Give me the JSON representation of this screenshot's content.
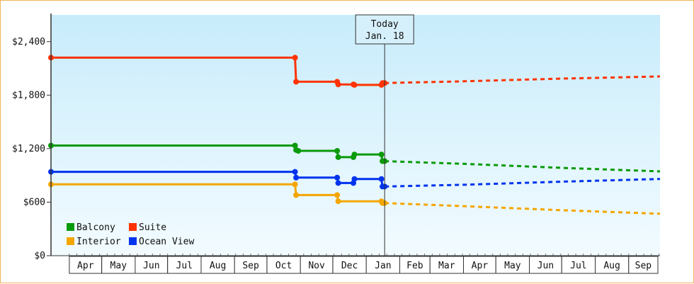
{
  "chart_data": {
    "type": "line",
    "title": "",
    "xlabel": "",
    "ylabel": "",
    "ylim": [
      0,
      2700
    ],
    "yticks": [
      0,
      600,
      1200,
      1800,
      2400
    ],
    "ytick_labels": [
      "$0",
      "$600",
      "$1,200",
      "$1,800",
      "$2,400"
    ],
    "x_range": [
      "2022-03-15",
      "2023-09-30"
    ],
    "x_month_labels": [
      "Apr",
      "May",
      "Jun",
      "Jul",
      "Aug",
      "Sep",
      "Oct",
      "Nov",
      "Dec",
      "Jan",
      "Feb",
      "Mar",
      "Apr",
      "May",
      "Jun",
      "Jul",
      "Aug",
      "Sep"
    ],
    "x_month_starts": [
      "2022-04-01",
      "2022-05-01",
      "2022-06-01",
      "2022-07-01",
      "2022-08-01",
      "2022-09-01",
      "2022-10-01",
      "2022-11-01",
      "2022-12-01",
      "2023-01-01",
      "2023-02-01",
      "2023-03-01",
      "2023-04-01",
      "2023-05-01",
      "2023-06-01",
      "2023-07-01",
      "2023-08-01",
      "2023-09-01",
      "2023-10-01"
    ],
    "today": {
      "date": "2023-01-18",
      "label_line1": "Today",
      "label_line2": "Jan. 18"
    },
    "grid": false,
    "legend_position": "bottom-left",
    "series": [
      {
        "name": "Balcony",
        "color": "#0a9a0a",
        "history": [
          [
            "2022-03-15",
            1235
          ],
          [
            "2022-10-27",
            1235
          ],
          [
            "2022-10-28",
            1185
          ],
          [
            "2022-10-30",
            1175
          ],
          [
            "2022-12-05",
            1175
          ],
          [
            "2022-12-06",
            1105
          ],
          [
            "2022-12-20",
            1105
          ],
          [
            "2022-12-21",
            1135
          ],
          [
            "2023-01-15",
            1135
          ],
          [
            "2023-01-16",
            1060
          ],
          [
            "2023-01-18",
            1060
          ]
        ],
        "forecast": [
          [
            "2023-01-18",
            1060
          ],
          [
            "2023-04-01",
            1030
          ],
          [
            "2023-07-01",
            985
          ],
          [
            "2023-09-30",
            945
          ]
        ]
      },
      {
        "name": "Suite",
        "color": "#ff3300",
        "history": [
          [
            "2022-03-15",
            2220
          ],
          [
            "2022-10-27",
            2220
          ],
          [
            "2022-10-28",
            1950
          ],
          [
            "2022-12-05",
            1950
          ],
          [
            "2022-12-06",
            1920
          ],
          [
            "2022-12-20",
            1920
          ],
          [
            "2022-12-21",
            1915
          ],
          [
            "2023-01-15",
            1915
          ],
          [
            "2023-01-16",
            1935
          ],
          [
            "2023-01-18",
            1935
          ]
        ],
        "forecast": [
          [
            "2023-01-18",
            1935
          ],
          [
            "2023-04-01",
            1955
          ],
          [
            "2023-07-01",
            1985
          ],
          [
            "2023-09-30",
            2010
          ]
        ]
      },
      {
        "name": "Interior",
        "color": "#f4a600",
        "history": [
          [
            "2022-03-15",
            800
          ],
          [
            "2022-10-27",
            800
          ],
          [
            "2022-10-28",
            680
          ],
          [
            "2022-12-05",
            680
          ],
          [
            "2022-12-06",
            610
          ],
          [
            "2022-12-20",
            610
          ],
          [
            "2022-12-21",
            610
          ],
          [
            "2023-01-15",
            610
          ],
          [
            "2023-01-16",
            590
          ],
          [
            "2023-01-18",
            590
          ]
        ],
        "forecast": [
          [
            "2023-01-18",
            590
          ],
          [
            "2023-04-01",
            555
          ],
          [
            "2023-07-01",
            510
          ],
          [
            "2023-09-30",
            470
          ]
        ]
      },
      {
        "name": "Ocean View",
        "color": "#0033ee",
        "history": [
          [
            "2022-03-15",
            940
          ],
          [
            "2022-10-27",
            940
          ],
          [
            "2022-10-28",
            875
          ],
          [
            "2022-12-05",
            875
          ],
          [
            "2022-12-06",
            815
          ],
          [
            "2022-12-20",
            815
          ],
          [
            "2022-12-21",
            860
          ],
          [
            "2023-01-15",
            860
          ],
          [
            "2023-01-16",
            775
          ],
          [
            "2023-01-18",
            775
          ]
        ],
        "forecast": [
          [
            "2023-01-18",
            775
          ],
          [
            "2023-04-01",
            795
          ],
          [
            "2023-07-01",
            830
          ],
          [
            "2023-09-30",
            860
          ]
        ]
      }
    ],
    "legend_order": [
      "Balcony",
      "Suite",
      "Interior",
      "Ocean View"
    ]
  }
}
